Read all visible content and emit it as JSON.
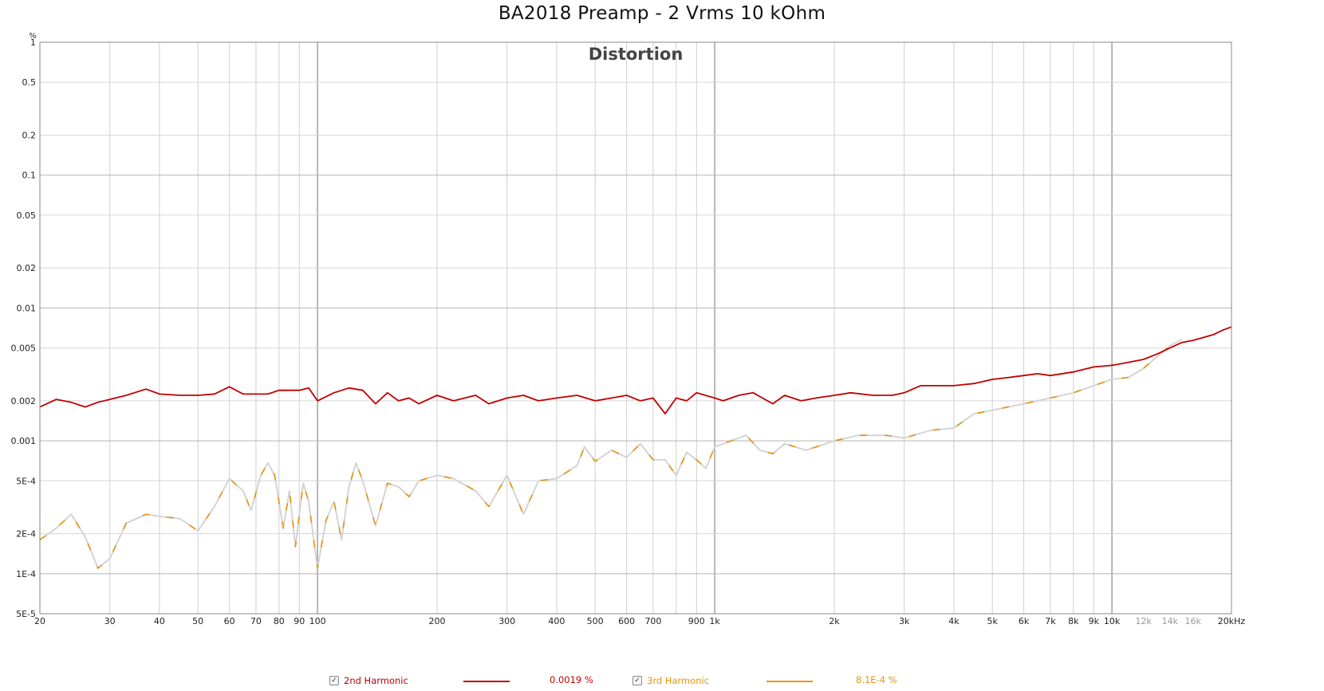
{
  "title": "BA2018 Preamp - 2 Vrms 10 kOhm",
  "chart_data": {
    "type": "line",
    "title": "Distortion",
    "xscale": "log",
    "yscale": "log",
    "xlim": [
      20,
      20000
    ],
    "ylim": [
      5e-05,
      1
    ],
    "xlabel": "",
    "ylabel": "%",
    "grid": true,
    "x_ticks": [
      {
        "v": 20,
        "l": "20"
      },
      {
        "v": 30,
        "l": "30"
      },
      {
        "v": 40,
        "l": "40"
      },
      {
        "v": 50,
        "l": "50"
      },
      {
        "v": 60,
        "l": "60"
      },
      {
        "v": 70,
        "l": "70"
      },
      {
        "v": 80,
        "l": "80"
      },
      {
        "v": 90,
        "l": "90"
      },
      {
        "v": 100,
        "l": "100"
      },
      {
        "v": 200,
        "l": "200"
      },
      {
        "v": 300,
        "l": "300"
      },
      {
        "v": 400,
        "l": "400"
      },
      {
        "v": 500,
        "l": "500"
      },
      {
        "v": 600,
        "l": "600"
      },
      {
        "v": 700,
        "l": "700"
      },
      {
        "v": 900,
        "l": "900"
      },
      {
        "v": 1000,
        "l": "1k"
      },
      {
        "v": 2000,
        "l": "2k"
      },
      {
        "v": 3000,
        "l": "3k"
      },
      {
        "v": 4000,
        "l": "4k"
      },
      {
        "v": 5000,
        "l": "5k"
      },
      {
        "v": 6000,
        "l": "6k"
      },
      {
        "v": 7000,
        "l": "7k"
      },
      {
        "v": 8000,
        "l": "8k"
      },
      {
        "v": 9000,
        "l": "9k"
      },
      {
        "v": 10000,
        "l": "10k"
      },
      {
        "v": 12000,
        "l": "12k"
      },
      {
        "v": 14000,
        "l": "14k"
      },
      {
        "v": 16000,
        "l": "16k"
      },
      {
        "v": 20000,
        "l": "20kHz"
      }
    ],
    "y_ticks": [
      {
        "v": 1,
        "l": "1"
      },
      {
        "v": 0.5,
        "l": "0.5"
      },
      {
        "v": 0.2,
        "l": "0.2"
      },
      {
        "v": 0.1,
        "l": "0.1"
      },
      {
        "v": 0.05,
        "l": "0.05"
      },
      {
        "v": 0.02,
        "l": "0.02"
      },
      {
        "v": 0.01,
        "l": "0.01"
      },
      {
        "v": 0.005,
        "l": "0.005"
      },
      {
        "v": 0.002,
        "l": "0.002"
      },
      {
        "v": 0.001,
        "l": "0.001"
      },
      {
        "v": 0.0005,
        "l": "5E-4"
      },
      {
        "v": 0.0002,
        "l": "2E-4"
      },
      {
        "v": 0.0001,
        "l": "1E-4"
      },
      {
        "v": 5e-05,
        "l": "5E-5"
      }
    ],
    "series": [
      {
        "name": "2nd Harmonic",
        "readout": "0.0019 %",
        "color": "#c00000",
        "checked": true,
        "points": [
          [
            20,
            0.0018
          ],
          [
            22,
            0.00205
          ],
          [
            24,
            0.00195
          ],
          [
            26,
            0.0018
          ],
          [
            28,
            0.00195
          ],
          [
            30,
            0.00205
          ],
          [
            33,
            0.0022
          ],
          [
            37,
            0.00245
          ],
          [
            40,
            0.00225
          ],
          [
            45,
            0.0022
          ],
          [
            50,
            0.0022
          ],
          [
            55,
            0.00225
          ],
          [
            60,
            0.00255
          ],
          [
            65,
            0.00225
          ],
          [
            70,
            0.00225
          ],
          [
            75,
            0.00225
          ],
          [
            80,
            0.0024
          ],
          [
            85,
            0.0024
          ],
          [
            90,
            0.0024
          ],
          [
            95,
            0.0025
          ],
          [
            100,
            0.002
          ],
          [
            110,
            0.0023
          ],
          [
            120,
            0.0025
          ],
          [
            130,
            0.0024
          ],
          [
            140,
            0.0019
          ],
          [
            150,
            0.0023
          ],
          [
            160,
            0.002
          ],
          [
            170,
            0.0021
          ],
          [
            180,
            0.0019
          ],
          [
            200,
            0.0022
          ],
          [
            220,
            0.002
          ],
          [
            250,
            0.0022
          ],
          [
            270,
            0.0019
          ],
          [
            300,
            0.0021
          ],
          [
            330,
            0.0022
          ],
          [
            360,
            0.002
          ],
          [
            400,
            0.0021
          ],
          [
            450,
            0.0022
          ],
          [
            500,
            0.002
          ],
          [
            550,
            0.0021
          ],
          [
            600,
            0.0022
          ],
          [
            650,
            0.002
          ],
          [
            700,
            0.0021
          ],
          [
            750,
            0.0016
          ],
          [
            800,
            0.0021
          ],
          [
            850,
            0.002
          ],
          [
            900,
            0.0023
          ],
          [
            1000,
            0.0021
          ],
          [
            1050,
            0.002
          ],
          [
            1150,
            0.0022
          ],
          [
            1250,
            0.0023
          ],
          [
            1400,
            0.0019
          ],
          [
            1500,
            0.0022
          ],
          [
            1650,
            0.002
          ],
          [
            1800,
            0.0021
          ],
          [
            2000,
            0.0022
          ],
          [
            2200,
            0.0023
          ],
          [
            2500,
            0.0022
          ],
          [
            2800,
            0.0022
          ],
          [
            3000,
            0.0023
          ],
          [
            3300,
            0.0026
          ],
          [
            3600,
            0.0026
          ],
          [
            4000,
            0.0026
          ],
          [
            4500,
            0.0027
          ],
          [
            5000,
            0.0029
          ],
          [
            5500,
            0.003
          ],
          [
            6000,
            0.0031
          ],
          [
            6500,
            0.0032
          ],
          [
            7000,
            0.0031
          ],
          [
            8000,
            0.0033
          ],
          [
            9000,
            0.0036
          ],
          [
            10000,
            0.0037
          ],
          [
            11000,
            0.0039
          ],
          [
            12000,
            0.0041
          ],
          [
            13000,
            0.0045
          ],
          [
            14000,
            0.005
          ],
          [
            15000,
            0.0055
          ],
          [
            16000,
            0.0057
          ],
          [
            17000,
            0.006
          ],
          [
            18000,
            0.0063
          ],
          [
            19000,
            0.0068
          ],
          [
            20000,
            0.0072
          ]
        ]
      },
      {
        "name": "3rd Harmonic",
        "readout": "8.1E-4 %",
        "color": "#e8950a",
        "checked": true,
        "points": [
          [
            20,
            0.00018
          ],
          [
            22,
            0.00022
          ],
          [
            24,
            0.00028
          ],
          [
            26,
            0.00019
          ],
          [
            28,
            0.00011
          ],
          [
            30,
            0.00013
          ],
          [
            33,
            0.00024
          ],
          [
            37,
            0.00028
          ],
          [
            40,
            0.00027
          ],
          [
            45,
            0.00026
          ],
          [
            50,
            0.00021
          ],
          [
            55,
            0.00032
          ],
          [
            60,
            0.00052
          ],
          [
            65,
            0.00042
          ],
          [
            68,
            0.0003
          ],
          [
            72,
            0.00055
          ],
          [
            75,
            0.00068
          ],
          [
            78,
            0.00055
          ],
          [
            82,
            0.00022
          ],
          [
            85,
            0.00042
          ],
          [
            88,
            0.00016
          ],
          [
            92,
            0.00048
          ],
          [
            95,
            0.00035
          ],
          [
            100,
            0.00011
          ],
          [
            105,
            0.00025
          ],
          [
            110,
            0.00035
          ],
          [
            115,
            0.00018
          ],
          [
            120,
            0.00045
          ],
          [
            125,
            0.00068
          ],
          [
            130,
            0.0005
          ],
          [
            140,
            0.00023
          ],
          [
            150,
            0.00048
          ],
          [
            160,
            0.00045
          ],
          [
            170,
            0.00038
          ],
          [
            180,
            0.0005
          ],
          [
            200,
            0.00055
          ],
          [
            220,
            0.00052
          ],
          [
            250,
            0.00042
          ],
          [
            270,
            0.00032
          ],
          [
            300,
            0.00055
          ],
          [
            330,
            0.00028
          ],
          [
            360,
            0.0005
          ],
          [
            400,
            0.00052
          ],
          [
            450,
            0.00065
          ],
          [
            470,
            0.0009
          ],
          [
            500,
            0.0007
          ],
          [
            550,
            0.00085
          ],
          [
            600,
            0.00075
          ],
          [
            650,
            0.00095
          ],
          [
            700,
            0.00072
          ],
          [
            750,
            0.00072
          ],
          [
            800,
            0.00055
          ],
          [
            850,
            0.00082
          ],
          [
            900,
            0.00072
          ],
          [
            950,
            0.00062
          ],
          [
            1000,
            0.0009
          ],
          [
            1100,
            0.001
          ],
          [
            1200,
            0.0011
          ],
          [
            1300,
            0.00085
          ],
          [
            1400,
            0.0008
          ],
          [
            1500,
            0.00095
          ],
          [
            1700,
            0.00085
          ],
          [
            2000,
            0.001
          ],
          [
            2300,
            0.0011
          ],
          [
            2700,
            0.0011
          ],
          [
            3000,
            0.00105
          ],
          [
            3500,
            0.0012
          ],
          [
            4000,
            0.00125
          ],
          [
            4500,
            0.0016
          ],
          [
            5000,
            0.0017
          ],
          [
            6000,
            0.0019
          ],
          [
            7000,
            0.0021
          ],
          [
            8000,
            0.0023
          ],
          [
            9000,
            0.0026
          ],
          [
            10000,
            0.0029
          ],
          [
            11000,
            0.003
          ],
          [
            12000,
            0.0035
          ],
          [
            13000,
            0.0043
          ],
          [
            14000,
            0.0052
          ],
          [
            15000,
            0.0058
          ]
        ]
      }
    ]
  },
  "legend": [
    {
      "label": "2nd Harmonic",
      "value": "0.0019 %",
      "color": "#c00000",
      "check": "✓"
    },
    {
      "label": "3rd Harmonic",
      "value": "8.1E-4 %",
      "color": "#e8950a",
      "check": "✓"
    }
  ]
}
